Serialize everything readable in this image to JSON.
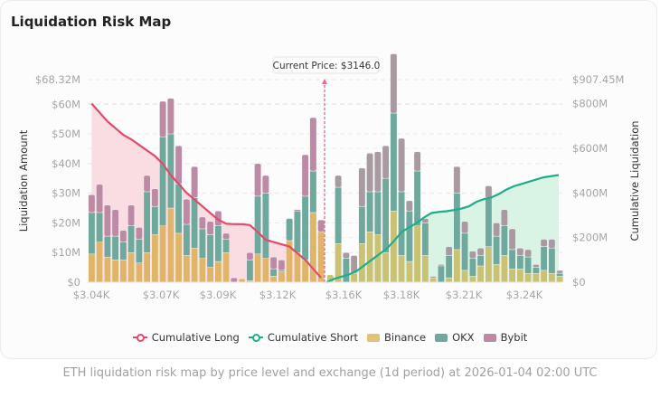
{
  "card": {
    "title": "Liquidation Risk Map",
    "caption": "ETH liquidation risk map by price level and exchange (1d period) at 2026-01-04 02:00 UTC"
  },
  "colors": {
    "binance": "#e0b469",
    "binance_short": "#c9c275",
    "okx": "#6fa89c",
    "bybit": "#bc8aa4",
    "long_line": "#e24a6a",
    "long_fill": "#f9d7de",
    "short_line": "#1fae8a",
    "short_fill": "#d5f2e1",
    "current_price": "#e86b8a"
  },
  "chart_data": {
    "type": "bar",
    "title": "Liquidation Risk Map",
    "ylabel": "Liquidation Amount",
    "y2label": "Cumulative Liquidation",
    "ylim": [
      0,
      68.32
    ],
    "y2lim": [
      0,
      907.45
    ],
    "y_ticks": [
      "$0",
      "$10M",
      "$20M",
      "$30M",
      "$40M",
      "$50M",
      "$60M",
      "$68.32M"
    ],
    "y_tick_values": [
      0,
      10,
      20,
      30,
      40,
      50,
      60,
      68.32
    ],
    "y2_ticks": [
      "$0",
      "$200M",
      "$400M",
      "$600M",
      "$800M",
      "$907.45M"
    ],
    "y2_tick_values": [
      0,
      200,
      400,
      600,
      800,
      907.45
    ],
    "x_ticks": [
      "$3.04K",
      "$3.07K",
      "$3.09K",
      "$3.12K",
      "$3.16K",
      "$3.18K",
      "$3.21K",
      "$3.24K"
    ],
    "x_tick_values": [
      3040,
      3070,
      3090,
      3120,
      3160,
      3180,
      3210,
      3240
    ],
    "xlim": [
      3039,
      3265
    ],
    "current_price": 3146.0,
    "current_price_label": "Current Price: $3146.0",
    "grid": true,
    "legend_position": "bottom",
    "legend": [
      "Cumulative Long",
      "Cumulative Short",
      "Binance",
      "OKX",
      "Bybit"
    ],
    "series": [
      {
        "name": "Binance",
        "values": [
          9.5,
          13.5,
          8.5,
          7.5,
          7.5,
          10,
          6.5,
          10,
          16,
          19,
          25,
          16.5,
          9,
          11.5,
          8,
          5,
          7,
          10,
          0,
          1.2,
          0.5,
          9.5,
          8,
          2,
          3.5,
          14,
          10,
          7.5,
          23.5,
          17,
          2.5,
          13,
          0,
          3,
          13,
          17,
          16,
          10,
          24,
          9,
          7,
          19,
          9,
          1.5,
          0,
          1.5,
          11,
          4,
          2,
          5.5,
          12,
          6,
          9,
          4.5,
          4.5,
          3,
          3,
          4,
          3,
          2
        ]
      },
      {
        "name": "OKX",
        "values": [
          14,
          10,
          7,
          8,
          6,
          9,
          8,
          20.5,
          9.5,
          30,
          25,
          16.5,
          10.5,
          17,
          10,
          11,
          12,
          4.5,
          0,
          0,
          7,
          19.5,
          22,
          2.5,
          0.5,
          7.5,
          14,
          21.5,
          14,
          0,
          0,
          19,
          8,
          0,
          12.5,
          13.5,
          14.5,
          25,
          33,
          21.5,
          17,
          18.5,
          11,
          0,
          5.5,
          7.5,
          19,
          12.5,
          6,
          3.5,
          16.5,
          9.5,
          10,
          6.5,
          4.5,
          5.5,
          2,
          8,
          8.5,
          1
        ]
      },
      {
        "name": "Bybit",
        "values": [
          6,
          9.5,
          10.5,
          9,
          4,
          7,
          4,
          5.5,
          6,
          12,
          12,
          13,
          8.5,
          10.5,
          4,
          4.5,
          5,
          2,
          1.5,
          0,
          2.5,
          11,
          6,
          4,
          3.5,
          0,
          0.5,
          14,
          18,
          4,
          0,
          4,
          2,
          6,
          13,
          13,
          13.5,
          11,
          20,
          18,
          3.5,
          6.5,
          1.5,
          0.5,
          0.5,
          3,
          9,
          4,
          2.5,
          2.5,
          4,
          4.5,
          5.5,
          7,
          2.5,
          2.5,
          1,
          2.5,
          3,
          1
        ]
      },
      {
        "name": "Cumulative Long",
        "axis": "right",
        "values": [
          800,
          760,
          720,
          690,
          660,
          640,
          615,
          590,
          565,
          530,
          480,
          440,
          400,
          370,
          340,
          310,
          280,
          262,
          260,
          260,
          256,
          225,
          190,
          180,
          170,
          160,
          130,
          100,
          60,
          20
        ]
      },
      {
        "name": "Cumulative Short",
        "axis": "right",
        "values": [
          0,
          15,
          25,
          35,
          50,
          75,
          100,
          125,
          150,
          185,
          225,
          245,
          265,
          290,
          310,
          315,
          318,
          323,
          330,
          340,
          360,
          372,
          380,
          395,
          415,
          430,
          440,
          450,
          460,
          470,
          475,
          480
        ]
      }
    ]
  }
}
